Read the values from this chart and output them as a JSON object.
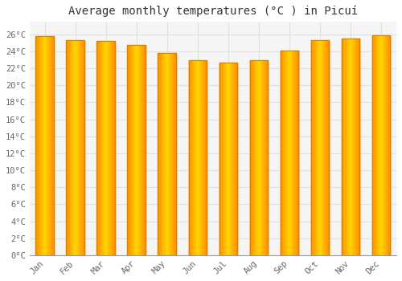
{
  "months": [
    "Jan",
    "Feb",
    "Mar",
    "Apr",
    "May",
    "Jun",
    "Jul",
    "Aug",
    "Sep",
    "Oct",
    "Nov",
    "Dec"
  ],
  "temperatures": [
    25.8,
    25.3,
    25.2,
    24.7,
    23.8,
    22.9,
    22.7,
    22.9,
    24.1,
    25.3,
    25.5,
    25.9
  ],
  "title": "Average monthly temperatures (°C ) in Picuí",
  "ylabel_ticks": [
    "0°C",
    "2°C",
    "4°C",
    "6°C",
    "8°C",
    "10°C",
    "12°C",
    "14°C",
    "16°C",
    "18°C",
    "20°C",
    "22°C",
    "24°C",
    "26°C"
  ],
  "ytick_values": [
    0,
    2,
    4,
    6,
    8,
    10,
    12,
    14,
    16,
    18,
    20,
    22,
    24,
    26
  ],
  "ylim": [
    0,
    27.5
  ],
  "background_color": "#ffffff",
  "plot_bg_color": "#f5f5f5",
  "grid_color": "#e0e0e0",
  "title_fontsize": 10,
  "tick_fontsize": 7.5,
  "bar_width": 0.6,
  "bar_color_left": "#FFA500",
  "bar_color_center": "#FFD700",
  "bar_color_right": "#FF8C00"
}
